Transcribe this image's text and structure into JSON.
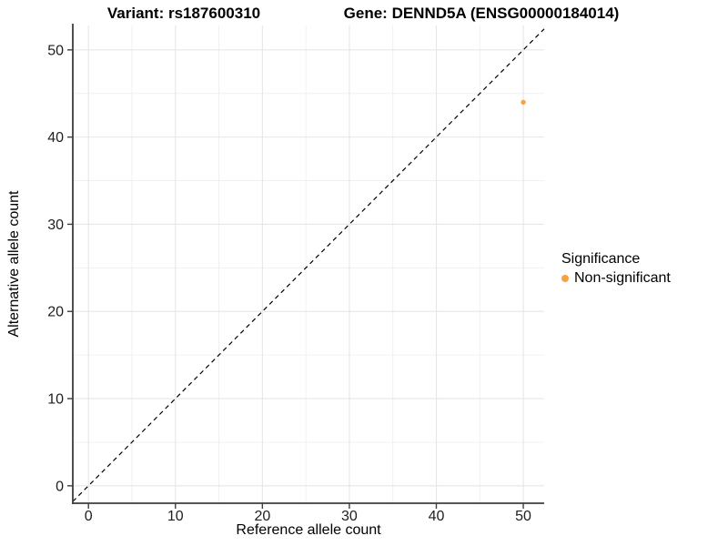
{
  "header": {
    "variant_title": "Variant: rs187600310",
    "gene_title": "Gene: DENND5A (ENSG00000184014)"
  },
  "axes": {
    "x_label": "Reference allele count",
    "y_label": "Alternative allele count"
  },
  "legend": {
    "title": "Significance",
    "items": [
      {
        "label": "Non-significant",
        "color": "#F9A242"
      }
    ]
  },
  "chart_data": {
    "type": "scatter",
    "title": "Variant: rs187600310 — Gene: DENND5A (ENSG00000184014)",
    "xlabel": "Reference allele count",
    "ylabel": "Alternative allele count",
    "xlim": [
      -1.8,
      52.4
    ],
    "ylim": [
      -2.0,
      52.8
    ],
    "x_ticks": [
      0,
      10,
      20,
      30,
      40,
      50
    ],
    "y_ticks": [
      0,
      10,
      20,
      30,
      40,
      50
    ],
    "minor_x_ticks": [
      5,
      15,
      25,
      35,
      45
    ],
    "minor_y_ticks": [
      5,
      15,
      25,
      35,
      45
    ],
    "series": [
      {
        "name": "Non-significant",
        "color": "#F9A242",
        "points": [
          {
            "x": 50,
            "y": 44
          }
        ]
      }
    ],
    "reference_line": {
      "type": "identity",
      "slope": 1,
      "intercept": 0,
      "style": "dashed",
      "color": "#000000"
    },
    "grid": "major and minor",
    "legend_position": "right"
  },
  "colors": {
    "background": "#FFFFFF",
    "grid_major": "#E6E6E6",
    "grid_minor": "#F0F0F0",
    "axis_line": "#3D3D3D",
    "tick_text": "#202020",
    "point": "#F9A242"
  }
}
